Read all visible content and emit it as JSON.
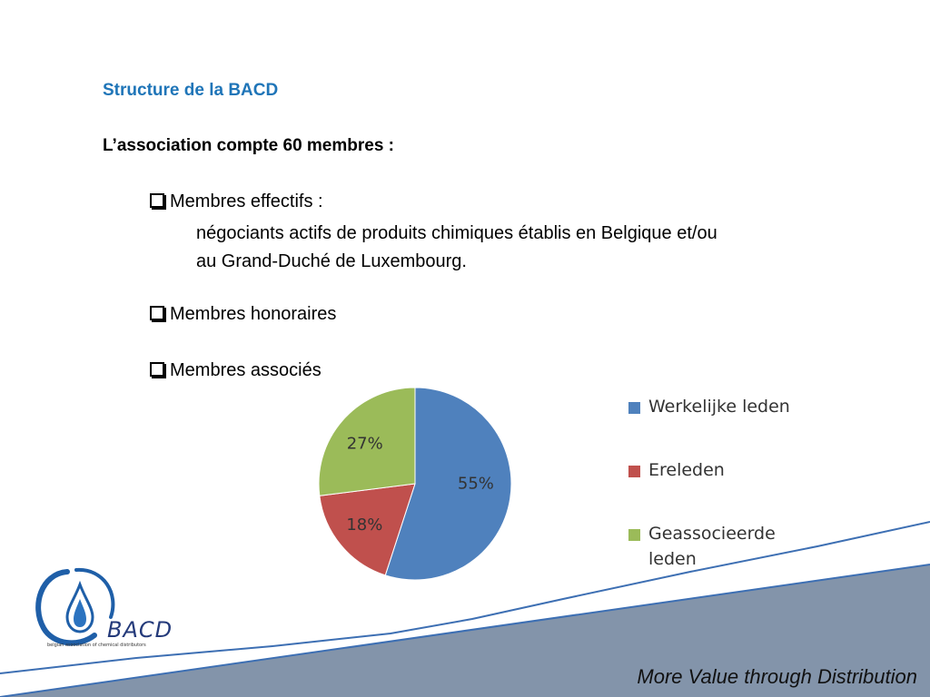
{
  "slide": {
    "title": "Structure de la BACD",
    "subtitle": "L’association compte 60 membres :",
    "bullets": {
      "effectifs": "Membres effectifs :",
      "effectifs_desc_line1": "négociants actifs de produits chimiques établis en Belgique et/ou",
      "effectifs_desc_line2": "au Grand-Duché de Luxembourg.",
      "honoraires": "Membres honoraires",
      "associes": "Membres associés"
    },
    "tagline": "More Value through Distribution",
    "logo": {
      "name": "BACD",
      "caption": "belgian association of chemical distributors"
    }
  },
  "colors": {
    "title": "#1f75b8",
    "band": "#8394aa",
    "band_line": "#3d6fb3"
  },
  "chart_data": {
    "type": "pie",
    "title": "",
    "slices": [
      {
        "name": "Werkelijke leden",
        "value": 55,
        "label": "55%",
        "color": "#4f81bd"
      },
      {
        "name": "Ereleden",
        "value": 18,
        "label": "18%",
        "color": "#c0504d"
      },
      {
        "name": "Geassocieerde leden",
        "value": 27,
        "label": "27%",
        "color": "#9bbb59"
      }
    ],
    "legend": {
      "placement": "right",
      "items": [
        {
          "line1": "Werkelijke leden",
          "line2": ""
        },
        {
          "line1": "Ereleden",
          "line2": ""
        },
        {
          "line1": "Geassocieerde",
          "line2": "leden"
        }
      ]
    }
  }
}
